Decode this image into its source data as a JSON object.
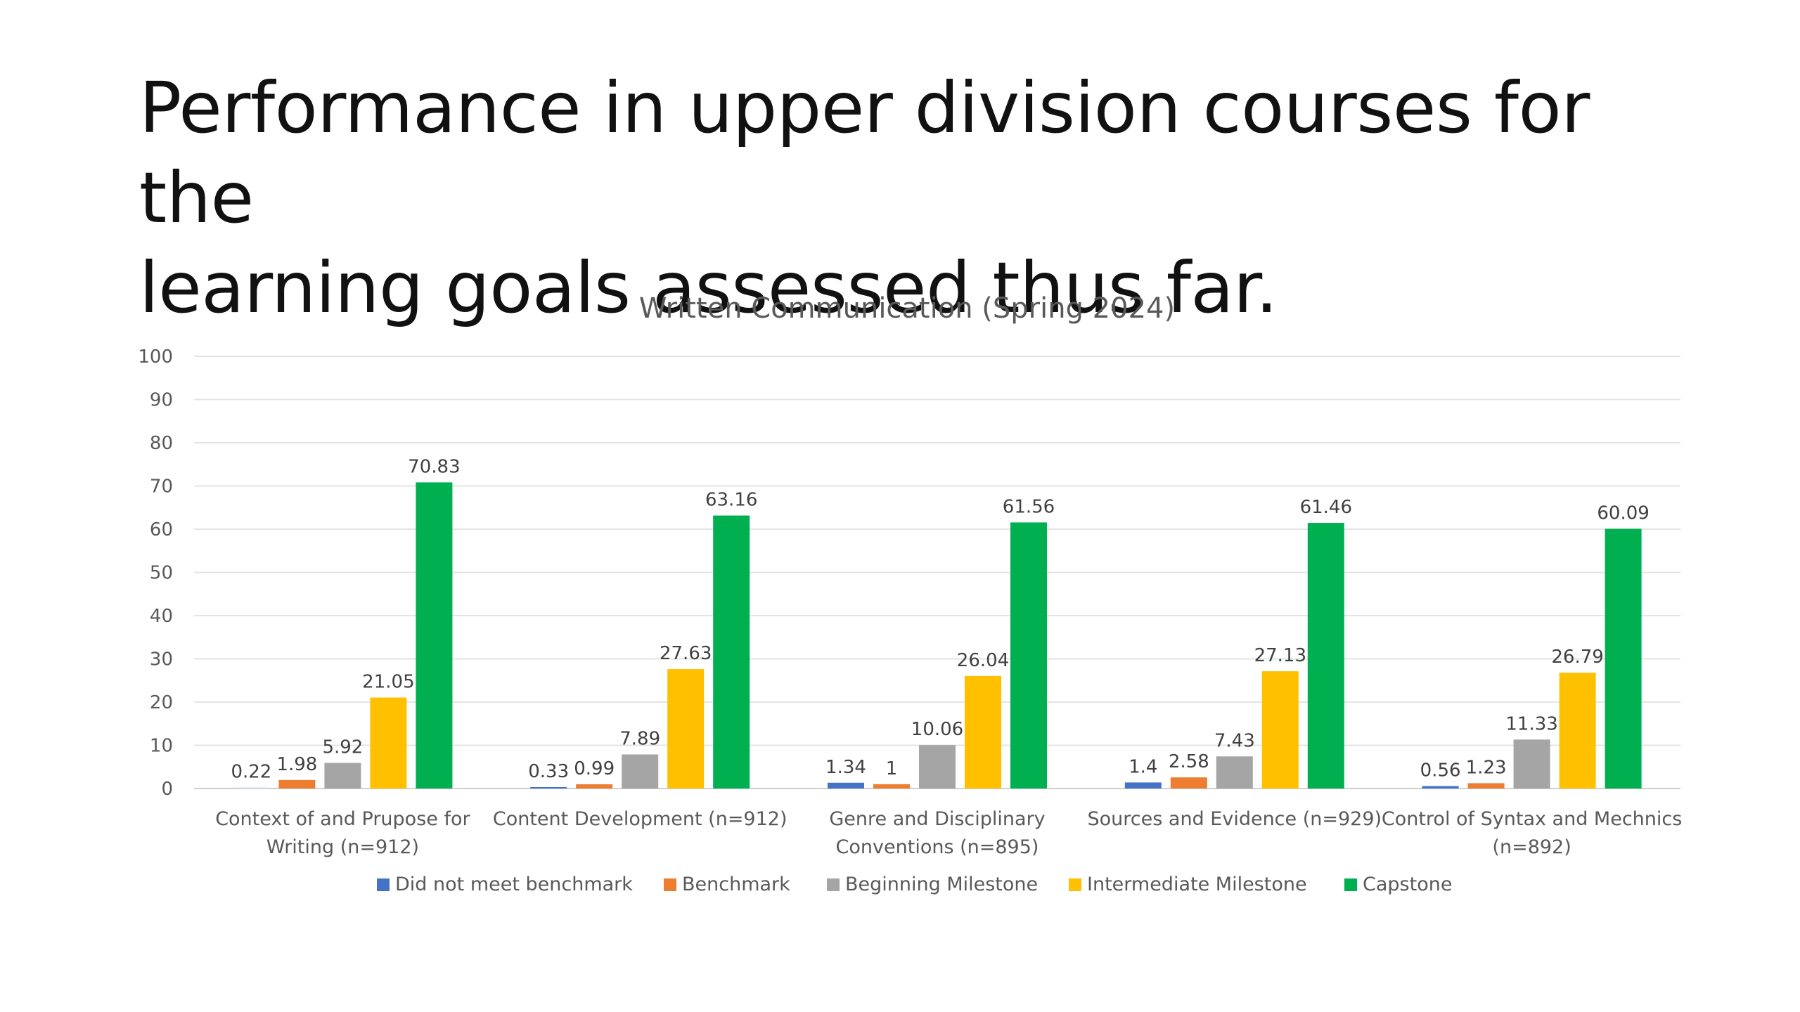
{
  "slide": {
    "title_line1": "Performance in upper division courses for the",
    "title_line2": "learning goals assessed thus far."
  },
  "chart_data": {
    "type": "bar",
    "title": "Written Communication (Spring 2024)",
    "xlabel": "",
    "ylabel": "",
    "ylim": [
      0,
      100
    ],
    "yticks": [
      0,
      10,
      20,
      30,
      40,
      50,
      60,
      70,
      80,
      90,
      100
    ],
    "grid": true,
    "legend_position": "bottom",
    "categories": [
      [
        "Context of and Prupose for",
        "Writing (n=912)"
      ],
      [
        "Content Development (n=912)"
      ],
      [
        "Genre and Disciplinary",
        "Conventions (n=895)"
      ],
      [
        "Sources and Evidence (n=929)"
      ],
      [
        "Control of Syntax and Mechnics",
        "(n=892)"
      ]
    ],
    "series": [
      {
        "name": "Did not meet benchmark",
        "color": "#4472C4",
        "values": [
          0.22,
          0.33,
          1.34,
          1.4,
          0.56
        ],
        "labels": [
          "0.22",
          "0.33",
          "1.34",
          "1.4",
          "0.56"
        ]
      },
      {
        "name": "Benchmark",
        "color": "#ED7D31",
        "values": [
          1.98,
          0.99,
          1,
          2.58,
          1.23
        ],
        "labels": [
          "1.98",
          "0.99",
          "1",
          "2.58",
          "1.23"
        ]
      },
      {
        "name": "Beginning Milestone",
        "color": "#A5A5A5",
        "values": [
          5.92,
          7.89,
          10.06,
          7.43,
          11.33
        ],
        "labels": [
          "5.92",
          "7.89",
          "10.06",
          "7.43",
          "11.33"
        ]
      },
      {
        "name": "Intermediate Milestone",
        "color": "#FFC000",
        "values": [
          21.05,
          27.63,
          26.04,
          27.13,
          26.79
        ],
        "labels": [
          "21.05",
          "27.63",
          "26.04",
          "27.13",
          "26.79"
        ]
      },
      {
        "name": "Capstone",
        "color": "#00B050",
        "values": [
          70.83,
          63.16,
          61.56,
          61.46,
          60.09
        ],
        "labels": [
          "70.83",
          "63.16",
          "61.56",
          "61.46",
          "60.09"
        ]
      }
    ]
  }
}
